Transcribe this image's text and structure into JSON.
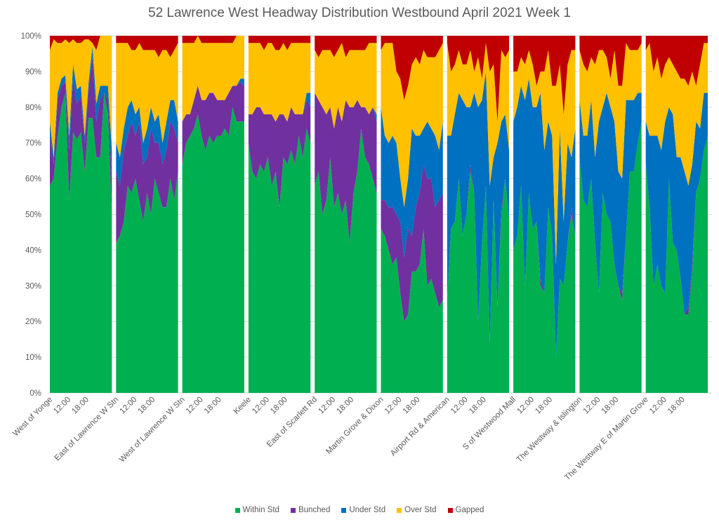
{
  "chart_data": {
    "type": "area",
    "stacked": true,
    "normalized_percent": true,
    "title": "52 Lawrence West  Headway Distribution Westbound April 2021 Week 1",
    "xlabel": "",
    "ylabel": "",
    "ylim": [
      0,
      1
    ],
    "y_ticks": [
      "0%",
      "10%",
      "20%",
      "30%",
      "40%",
      "50%",
      "60%",
      "70%",
      "80%",
      "90%",
      "100%"
    ],
    "grid": true,
    "legend_position": "bottom",
    "series": [
      {
        "name": "Within Std",
        "color": "#00B050"
      },
      {
        "name": "Bunched",
        "color": "#7030A0"
      },
      {
        "name": "Under Std",
        "color": "#0070C0"
      },
      {
        "name": "Over Std",
        "color": "#FFC000"
      },
      {
        "name": "Gapped",
        "color": "#C00000"
      }
    ],
    "groups": [
      {
        "stop": "West of Yonge",
        "time_ticks": [
          "12:00",
          "18:00"
        ],
        "points": [
          [
            58,
            14,
            4,
            20,
            4
          ],
          [
            60,
            4,
            2,
            33,
            1
          ],
          [
            72,
            10,
            2,
            14,
            2
          ],
          [
            80,
            6,
            2,
            10,
            2
          ],
          [
            84,
            3,
            2,
            10,
            1
          ],
          [
            54,
            14,
            4,
            26,
            2
          ],
          [
            73,
            15,
            4,
            7,
            1
          ],
          [
            71,
            10,
            4,
            13,
            2
          ],
          [
            73,
            10,
            3,
            12,
            2
          ],
          [
            62,
            8,
            2,
            27,
            1
          ],
          [
            77,
            8,
            2,
            12,
            1
          ],
          [
            77,
            17,
            3,
            1,
            2
          ],
          [
            66,
            10,
            5,
            15,
            4
          ],
          [
            66,
            16,
            4,
            14,
            0
          ],
          [
            84,
            0,
            2,
            14,
            0
          ],
          [
            78,
            4,
            4,
            14,
            0
          ],
          [
            50,
            10,
            8,
            32,
            0
          ]
        ]
      },
      {
        "stop": "East of Lawrence W Stn",
        "time_ticks": [
          "12:00",
          "18:00"
        ],
        "points": [
          [
            42,
            20,
            8,
            28,
            2
          ],
          [
            44,
            14,
            8,
            32,
            2
          ],
          [
            48,
            20,
            6,
            24,
            2
          ],
          [
            58,
            14,
            8,
            18,
            2
          ],
          [
            56,
            20,
            6,
            14,
            4
          ],
          [
            60,
            12,
            6,
            18,
            4
          ],
          [
            54,
            22,
            4,
            18,
            2
          ],
          [
            48,
            16,
            6,
            26,
            4
          ],
          [
            56,
            10,
            8,
            22,
            4
          ],
          [
            50,
            24,
            6,
            16,
            4
          ],
          [
            60,
            10,
            6,
            20,
            4
          ],
          [
            56,
            14,
            8,
            16,
            6
          ],
          [
            52,
            12,
            6,
            26,
            4
          ],
          [
            52,
            16,
            8,
            20,
            4
          ],
          [
            60,
            16,
            6,
            12,
            6
          ],
          [
            54,
            20,
            8,
            14,
            4
          ],
          [
            62,
            8,
            6,
            22,
            2
          ]
        ]
      },
      {
        "stop": "West of Lawrence W Stn",
        "time_ticks": [
          "12:00",
          "18:00"
        ],
        "points": [
          [
            64,
            12,
            0,
            22,
            2
          ],
          [
            70,
            8,
            0,
            20,
            2
          ],
          [
            72,
            6,
            0,
            20,
            2
          ],
          [
            74,
            8,
            0,
            16,
            2
          ],
          [
            78,
            8,
            0,
            14,
            0
          ],
          [
            72,
            10,
            0,
            16,
            2
          ],
          [
            68,
            14,
            0,
            16,
            2
          ],
          [
            72,
            12,
            0,
            14,
            2
          ],
          [
            70,
            14,
            0,
            14,
            2
          ],
          [
            72,
            10,
            0,
            16,
            2
          ],
          [
            72,
            10,
            0,
            16,
            2
          ],
          [
            74,
            8,
            0,
            16,
            2
          ],
          [
            72,
            12,
            0,
            14,
            2
          ],
          [
            80,
            6,
            0,
            12,
            2
          ],
          [
            76,
            10,
            0,
            14,
            0
          ],
          [
            76,
            11,
            1,
            12,
            0
          ],
          [
            76,
            10,
            2,
            12,
            0
          ]
        ]
      },
      {
        "stop": "Keele",
        "time_ticks": [
          "12:00",
          "18:00"
        ],
        "points": [
          [
            70,
            8,
            0,
            20,
            2
          ],
          [
            62,
            16,
            0,
            20,
            2
          ],
          [
            60,
            20,
            0,
            18,
            2
          ],
          [
            64,
            16,
            0,
            18,
            2
          ],
          [
            62,
            16,
            0,
            18,
            4
          ],
          [
            66,
            12,
            0,
            20,
            2
          ],
          [
            58,
            20,
            0,
            20,
            2
          ],
          [
            62,
            14,
            0,
            20,
            4
          ],
          [
            52,
            26,
            0,
            18,
            4
          ],
          [
            66,
            12,
            0,
            20,
            2
          ],
          [
            64,
            12,
            0,
            20,
            4
          ],
          [
            68,
            12,
            0,
            18,
            2
          ],
          [
            64,
            14,
            0,
            20,
            2
          ],
          [
            72,
            6,
            0,
            20,
            2
          ],
          [
            66,
            12,
            0,
            20,
            2
          ],
          [
            74,
            8,
            2,
            14,
            2
          ],
          [
            70,
            10,
            4,
            14,
            2
          ]
        ]
      },
      {
        "stop": "East of Scarlett Rd",
        "time_ticks": [
          "12:00",
          "18:00"
        ],
        "points": [
          [
            58,
            26,
            0,
            12,
            4
          ],
          [
            62,
            20,
            0,
            12,
            6
          ],
          [
            50,
            30,
            0,
            16,
            4
          ],
          [
            54,
            24,
            0,
            18,
            4
          ],
          [
            66,
            14,
            0,
            16,
            4
          ],
          [
            52,
            22,
            0,
            20,
            6
          ],
          [
            56,
            24,
            0,
            16,
            4
          ],
          [
            50,
            26,
            0,
            22,
            2
          ],
          [
            54,
            28,
            0,
            12,
            6
          ],
          [
            42,
            38,
            0,
            16,
            4
          ],
          [
            56,
            24,
            0,
            16,
            4
          ],
          [
            62,
            20,
            0,
            14,
            4
          ],
          [
            74,
            6,
            0,
            16,
            4
          ],
          [
            66,
            14,
            0,
            16,
            4
          ],
          [
            64,
            14,
            0,
            20,
            2
          ],
          [
            60,
            20,
            0,
            18,
            2
          ],
          [
            56,
            20,
            2,
            20,
            2
          ]
        ]
      },
      {
        "stop": "Martin Grove & Dixon",
        "time_ticks": [
          "12:00",
          "18:00"
        ],
        "points": [
          [
            46,
            8,
            26,
            16,
            4
          ],
          [
            44,
            10,
            18,
            26,
            2
          ],
          [
            40,
            12,
            18,
            28,
            2
          ],
          [
            36,
            16,
            20,
            26,
            2
          ],
          [
            38,
            12,
            20,
            20,
            10
          ],
          [
            28,
            20,
            12,
            28,
            12
          ],
          [
            20,
            18,
            14,
            30,
            18
          ],
          [
            22,
            24,
            14,
            26,
            14
          ],
          [
            34,
            10,
            30,
            18,
            8
          ],
          [
            34,
            18,
            20,
            22,
            6
          ],
          [
            36,
            20,
            16,
            20,
            8
          ],
          [
            46,
            18,
            10,
            22,
            4
          ],
          [
            30,
            30,
            16,
            18,
            6
          ],
          [
            32,
            28,
            14,
            20,
            6
          ],
          [
            28,
            24,
            20,
            22,
            6
          ],
          [
            24,
            30,
            14,
            28,
            4
          ],
          [
            26,
            30,
            20,
            22,
            2
          ]
        ]
      },
      {
        "stop": "Airport Rd & American",
        "time_ticks": [
          "12:00",
          "18:00"
        ],
        "points": [
          [
            26,
            0,
            46,
            26,
            2
          ],
          [
            46,
            0,
            26,
            18,
            10
          ],
          [
            48,
            0,
            30,
            14,
            8
          ],
          [
            60,
            0,
            24,
            12,
            4
          ],
          [
            44,
            0,
            38,
            10,
            8
          ],
          [
            50,
            0,
            30,
            12,
            8
          ],
          [
            62,
            2,
            16,
            16,
            4
          ],
          [
            56,
            0,
            28,
            6,
            10
          ],
          [
            20,
            0,
            60,
            14,
            6
          ],
          [
            42,
            0,
            40,
            6,
            12
          ],
          [
            58,
            0,
            32,
            8,
            2
          ],
          [
            14,
            0,
            44,
            32,
            10
          ],
          [
            54,
            0,
            12,
            26,
            8
          ],
          [
            24,
            0,
            46,
            6,
            24
          ],
          [
            50,
            2,
            24,
            20,
            4
          ],
          [
            60,
            0,
            18,
            16,
            6
          ],
          [
            48,
            0,
            20,
            28,
            4
          ]
        ]
      },
      {
        "stop": "S of Westwood Mall",
        "time_ticks": [
          "12:00",
          "18:00"
        ],
        "points": [
          [
            40,
            0,
            36,
            14,
            10
          ],
          [
            44,
            0,
            36,
            10,
            10
          ],
          [
            58,
            0,
            28,
            8,
            6
          ],
          [
            30,
            0,
            52,
            10,
            8
          ],
          [
            56,
            0,
            32,
            8,
            4
          ],
          [
            46,
            0,
            34,
            12,
            8
          ],
          [
            48,
            0,
            32,
            6,
            14
          ],
          [
            30,
            2,
            52,
            6,
            10
          ],
          [
            28,
            0,
            40,
            22,
            10
          ],
          [
            52,
            0,
            24,
            20,
            4
          ],
          [
            44,
            0,
            28,
            14,
            14
          ],
          [
            10,
            0,
            26,
            50,
            14
          ],
          [
            32,
            0,
            42,
            18,
            8
          ],
          [
            30,
            0,
            18,
            30,
            22
          ],
          [
            42,
            0,
            28,
            22,
            8
          ],
          [
            50,
            2,
            14,
            30,
            4
          ],
          [
            44,
            0,
            30,
            22,
            4
          ]
        ]
      },
      {
        "stop": "The Westway & Islington",
        "time_ticks": [
          "12:00",
          "18:00"
        ],
        "points": [
          [
            66,
            0,
            16,
            14,
            4
          ],
          [
            54,
            0,
            18,
            20,
            8
          ],
          [
            52,
            0,
            20,
            18,
            10
          ],
          [
            60,
            0,
            22,
            12,
            6
          ],
          [
            42,
            0,
            24,
            26,
            8
          ],
          [
            28,
            0,
            48,
            20,
            4
          ],
          [
            56,
            0,
            24,
            16,
            4
          ],
          [
            50,
            0,
            34,
            10,
            6
          ],
          [
            48,
            0,
            32,
            8,
            12
          ],
          [
            36,
            0,
            40,
            20,
            4
          ],
          [
            30,
            0,
            32,
            24,
            14
          ],
          [
            26,
            2,
            32,
            26,
            14
          ],
          [
            44,
            0,
            38,
            16,
            2
          ],
          [
            62,
            0,
            20,
            14,
            4
          ],
          [
            62,
            0,
            20,
            14,
            4
          ],
          [
            70,
            0,
            14,
            12,
            4
          ],
          [
            76,
            0,
            8,
            14,
            2
          ]
        ]
      },
      {
        "stop": "The Westway E of Martin Grove",
        "time_ticks": [
          "12:00",
          "18:00"
        ],
        "points": [
          [
            64,
            0,
            12,
            20,
            4
          ],
          [
            52,
            0,
            20,
            26,
            2
          ],
          [
            30,
            0,
            42,
            18,
            10
          ],
          [
            36,
            0,
            36,
            22,
            6
          ],
          [
            30,
            0,
            38,
            20,
            12
          ],
          [
            28,
            0,
            48,
            16,
            8
          ],
          [
            60,
            0,
            20,
            14,
            6
          ],
          [
            42,
            0,
            36,
            14,
            8
          ],
          [
            40,
            0,
            26,
            24,
            10
          ],
          [
            32,
            0,
            34,
            22,
            12
          ],
          [
            22,
            0,
            40,
            26,
            12
          ],
          [
            22,
            2,
            34,
            28,
            14
          ],
          [
            34,
            2,
            28,
            26,
            10
          ],
          [
            56,
            0,
            20,
            10,
            14
          ],
          [
            60,
            0,
            14,
            18,
            8
          ],
          [
            68,
            0,
            16,
            14,
            2
          ],
          [
            72,
            0,
            12,
            14,
            2
          ]
        ]
      }
    ]
  }
}
